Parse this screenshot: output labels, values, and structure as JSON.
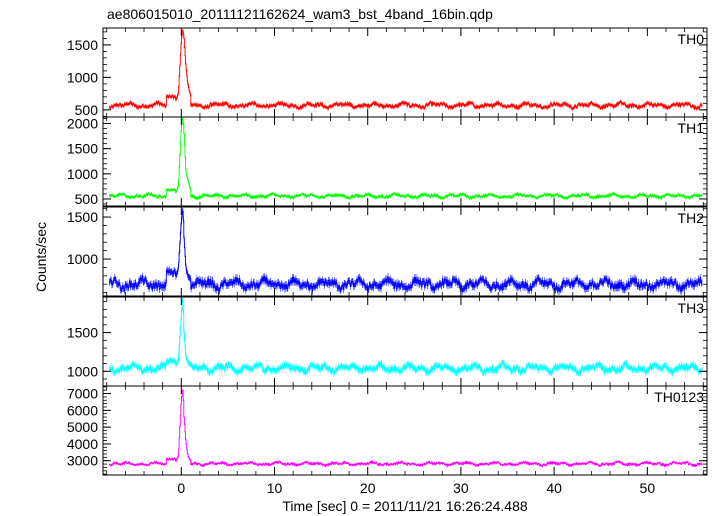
{
  "chart_data": {
    "type": "line",
    "title": "ae806015010_20111121162624_wam3_bst_4band_16bin.qdp",
    "xlabel": "Time [sec] 0 = 2011/11/21 16:26:24.488",
    "ylabel": "Counts/sec",
    "xlim": [
      -8.4,
      56.4
    ],
    "x_ticks": [
      0,
      10,
      20,
      30,
      40,
      50
    ],
    "x_tick_labels": [
      "0",
      "10",
      "20",
      "30",
      "40",
      "50"
    ],
    "error_bars": true,
    "grid": false,
    "panels": [
      {
        "name": "TH0",
        "color": "#ff0000",
        "ylim": [
          390,
          1760
        ],
        "y_ticks": [
          500,
          1000,
          1500
        ],
        "y_tick_labels": [
          "500",
          "1000",
          "1500"
        ],
        "baseline": 570,
        "noise": 35,
        "err": 25,
        "peak": 1720,
        "peak_x": 0.2,
        "bump": 700,
        "peak_profile": [
          [
            -0.6,
            640
          ],
          [
            -0.3,
            760
          ],
          [
            0.0,
            1550
          ],
          [
            0.1,
            1700
          ],
          [
            0.2,
            1720
          ],
          [
            0.3,
            1600
          ],
          [
            0.5,
            1180
          ],
          [
            0.7,
            900
          ],
          [
            1.0,
            720
          ]
        ]
      },
      {
        "name": "TH1",
        "color": "#00ff00",
        "ylim": [
          360,
          2130
        ],
        "y_ticks": [
          500,
          1000,
          1500,
          2000
        ],
        "y_tick_labels": [
          "500",
          "1000",
          "1500",
          "2000"
        ],
        "baseline": 560,
        "noise": 35,
        "err": 25,
        "peak": 2100,
        "peak_x": 0.2,
        "bump": 680,
        "peak_profile": [
          [
            -0.6,
            620
          ],
          [
            -0.3,
            760
          ],
          [
            0.0,
            1900
          ],
          [
            0.1,
            2080
          ],
          [
            0.2,
            2100
          ],
          [
            0.3,
            1800
          ],
          [
            0.5,
            1050
          ],
          [
            0.7,
            880
          ],
          [
            1.0,
            700
          ]
        ]
      },
      {
        "name": "TH2",
        "color": "#0000ff",
        "ylim": [
          560,
          1620
        ],
        "y_ticks": [
          1000,
          1500
        ],
        "y_tick_labels": [
          "1000",
          "1500"
        ],
        "baseline": 700,
        "noise": 55,
        "err": 40,
        "peak": 1580,
        "peak_x": 0.2,
        "bump": 850,
        "peak_profile": [
          [
            -0.6,
            780
          ],
          [
            -0.3,
            900
          ],
          [
            0.0,
            1450
          ],
          [
            0.1,
            1560
          ],
          [
            0.2,
            1580
          ],
          [
            0.3,
            1250
          ],
          [
            0.5,
            900
          ],
          [
            0.7,
            800
          ],
          [
            1.0,
            760
          ]
        ]
      },
      {
        "name": "TH3",
        "color": "#00ffff",
        "ylim": [
          810,
          1960
        ],
        "y_ticks": [
          1000,
          1500
        ],
        "y_tick_labels": [
          "1000",
          "1500"
        ],
        "baseline": 1040,
        "noise": 45,
        "err": 35,
        "peak": 1930,
        "peak_x": 0.2,
        "bump": 1130,
        "peak_profile": [
          [
            -0.6,
            1080
          ],
          [
            -0.3,
            1150
          ],
          [
            0.0,
            1700
          ],
          [
            0.1,
            1900
          ],
          [
            0.2,
            1930
          ],
          [
            0.3,
            1500
          ],
          [
            0.5,
            1200
          ],
          [
            0.7,
            1120
          ],
          [
            1.0,
            1080
          ]
        ]
      },
      {
        "name": "TH0123",
        "color": "#ff00ff",
        "ylim": [
          2150,
          7450
        ],
        "y_ticks": [
          3000,
          4000,
          5000,
          6000,
          7000
        ],
        "y_tick_labels": [
          "3000",
          "4000",
          "5000",
          "6000",
          "7000"
        ],
        "baseline": 2820,
        "noise": 90,
        "err": 60,
        "peak": 7200,
        "peak_x": 0.2,
        "bump": 3100,
        "peak_profile": [
          [
            -0.6,
            2950
          ],
          [
            -0.3,
            3300
          ],
          [
            0.0,
            6500
          ],
          [
            0.1,
            7150
          ],
          [
            0.2,
            7200
          ],
          [
            0.3,
            5600
          ],
          [
            0.5,
            4200
          ],
          [
            0.7,
            3300
          ],
          [
            1.0,
            3000
          ]
        ]
      }
    ]
  }
}
